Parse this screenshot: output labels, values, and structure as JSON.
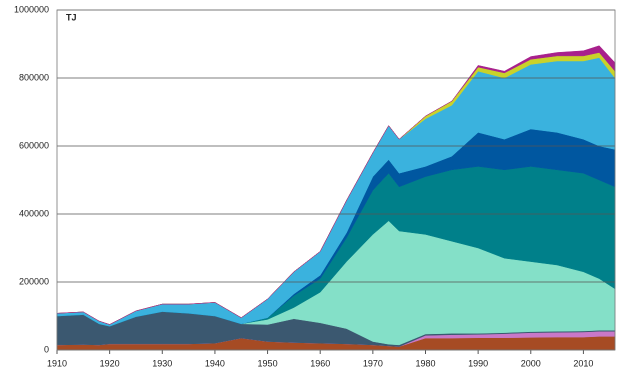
{
  "chart_data": {
    "type": "stacked-area",
    "y_label": "TJ",
    "x": [
      1910,
      1915,
      1918,
      1920,
      1925,
      1930,
      1935,
      1940,
      1945,
      1950,
      1955,
      1960,
      1965,
      1970,
      1973,
      1975,
      1980,
      1985,
      1990,
      1995,
      2000,
      2005,
      2010,
      2013,
      2016
    ],
    "xlim": [
      1910,
      2016
    ],
    "xticks": [
      1910,
      1920,
      1930,
      1940,
      1950,
      1960,
      1970,
      1980,
      1990,
      2000,
      2010
    ],
    "ylim": [
      0,
      1000000
    ],
    "yticks": [
      0,
      200000,
      400000,
      600000,
      800000,
      1000000
    ],
    "grid": true,
    "series": [
      {
        "color": "#a64b24",
        "values": [
          15000,
          16000,
          15000,
          18000,
          18000,
          18000,
          18000,
          20000,
          35000,
          25000,
          22000,
          20000,
          18000,
          15000,
          12000,
          10000,
          35000,
          35000,
          36000,
          36000,
          37000,
          38000,
          38000,
          40000,
          40000
        ]
      },
      {
        "color": "#c978c8",
        "values": [
          0,
          0,
          0,
          0,
          0,
          0,
          0,
          0,
          0,
          0,
          0,
          0,
          0,
          0,
          0,
          0,
          8000,
          10000,
          10000,
          12000,
          14000,
          14000,
          15000,
          15000,
          15000
        ]
      },
      {
        "color": "#3b5870",
        "values": [
          85000,
          88000,
          62000,
          52000,
          80000,
          95000,
          90000,
          80000,
          42000,
          50000,
          70000,
          60000,
          45000,
          10000,
          5000,
          5000,
          4000,
          4000,
          3000,
          3000,
          3000,
          3000,
          3000,
          3000,
          3000
        ]
      },
      {
        "color": "#84e0c8",
        "values": [
          0,
          0,
          0,
          0,
          0,
          0,
          0,
          0,
          0,
          15000,
          33000,
          90000,
          197000,
          315000,
          363000,
          335000,
          293000,
          271000,
          251000,
          219000,
          206000,
          195000,
          174000,
          152000,
          122000
        ]
      },
      {
        "color": "#00808a",
        "values": [
          0,
          0,
          0,
          0,
          0,
          0,
          0,
          0,
          0,
          5000,
          35000,
          40000,
          70000,
          130000,
          140000,
          130000,
          170000,
          210000,
          240000,
          260000,
          280000,
          280000,
          290000,
          290000,
          300000
        ]
      },
      {
        "color": "#0057a0",
        "values": [
          0,
          0,
          0,
          0,
          0,
          0,
          0,
          0,
          0,
          0,
          5000,
          10000,
          15000,
          40000,
          40000,
          40000,
          30000,
          40000,
          100000,
          90000,
          110000,
          110000,
          100000,
          100000,
          110000
        ]
      },
      {
        "color": "#3ab2de",
        "values": [
          8000,
          8000,
          8000,
          5000,
          17000,
          22000,
          27000,
          40000,
          18000,
          55000,
          65000,
          70000,
          95000,
          70000,
          100000,
          100000,
          140000,
          150000,
          180000,
          180000,
          190000,
          210000,
          230000,
          260000,
          210000
        ]
      },
      {
        "color": "#c9d22a",
        "values": [
          0,
          0,
          0,
          0,
          0,
          0,
          0,
          0,
          0,
          0,
          0,
          0,
          0,
          0,
          0,
          0,
          8000,
          12000,
          12000,
          15000,
          15000,
          15000,
          15000,
          15000,
          20000
        ]
      },
      {
        "color": "#a8208c",
        "values": [
          0,
          0,
          0,
          0,
          0,
          0,
          0,
          0,
          0,
          0,
          0,
          0,
          0,
          0,
          0,
          0,
          0,
          0,
          5000,
          5000,
          8000,
          10000,
          15000,
          20000,
          25000
        ]
      }
    ]
  }
}
